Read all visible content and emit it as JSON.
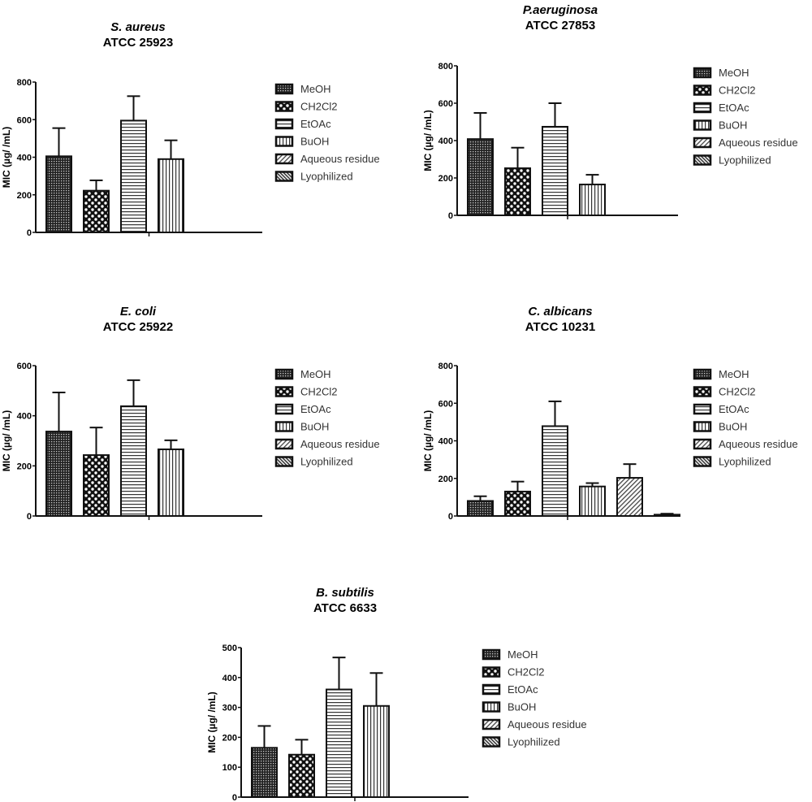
{
  "legend": [
    "MeOH",
    "CH2Cl2",
    "EtOAc",
    "BuOH",
    "Aqueous residue",
    "Lyophilized"
  ],
  "pattern_names": [
    "dense-dots",
    "checker",
    "horizontal-lines",
    "vertical-lines",
    "diagonal-lines",
    "dense-diagonal"
  ],
  "chart_data": [
    {
      "type": "bar",
      "title": "S. aureus",
      "subtitle": "ATCC 25923",
      "ylabel": "MIC (µg/ /mL)",
      "ylim": [
        0,
        800
      ],
      "yticks": [
        0,
        200,
        400,
        600,
        800
      ],
      "categories": [
        "MeOH",
        "CH2Cl2",
        "EtOAc",
        "BuOH",
        "Aqueous residue",
        "Lyophilized"
      ],
      "values": [
        405,
        222,
        595,
        390,
        null,
        null
      ],
      "errors": [
        150,
        55,
        130,
        100,
        null,
        null
      ],
      "legend": "right"
    },
    {
      "type": "bar",
      "title": "P.aeruginosa",
      "subtitle": "ATCC 27853",
      "ylabel": "MIC (µg/ /mL)",
      "ylim": [
        0,
        800
      ],
      "yticks": [
        0,
        200,
        400,
        600,
        800
      ],
      "categories": [
        "MeOH",
        "CH2Cl2",
        "EtOAc",
        "BuOH",
        "Aqueous residue",
        "Lyophilized"
      ],
      "values": [
        408,
        252,
        474,
        165,
        null,
        null
      ],
      "errors": [
        140,
        110,
        126,
        52,
        null,
        null
      ],
      "legend": "right"
    },
    {
      "type": "bar",
      "title": "E. coli",
      "subtitle": "ATCC 25922",
      "ylabel": "MIC (µg/ /mL)",
      "ylim": [
        0,
        600
      ],
      "yticks": [
        0,
        200,
        400,
        600
      ],
      "categories": [
        "MeOH",
        "CH2Cl2",
        "EtOAc",
        "BuOH",
        "Aqueous residue",
        "Lyophilized"
      ],
      "values": [
        337,
        243,
        438,
        266,
        null,
        null
      ],
      "errors": [
        156,
        110,
        104,
        36,
        null,
        null
      ],
      "legend": "right"
    },
    {
      "type": "bar",
      "title": "C. albicans",
      "subtitle": "ATCC 10231",
      "ylabel": "MIC (µg/ /mL)",
      "ylim": [
        0,
        800
      ],
      "yticks": [
        0,
        200,
        400,
        600,
        800
      ],
      "categories": [
        "MeOH",
        "CH2Cl2",
        "EtOAc",
        "BuOH",
        "Aqueous residue",
        "Lyophilized"
      ],
      "values": [
        80,
        130,
        478,
        157,
        203,
        7
      ],
      "errors": [
        25,
        53,
        132,
        18,
        73,
        5
      ],
      "legend": "right"
    },
    {
      "type": "bar",
      "title": "B. subtilis",
      "subtitle": "ATCC 6633",
      "ylabel": "MIC (µg/ /mL)",
      "ylim": [
        0,
        500
      ],
      "yticks": [
        0,
        100,
        200,
        300,
        400,
        500
      ],
      "categories": [
        "MeOH",
        "CH2Cl2",
        "EtOAc",
        "BuOH",
        "Aqueous residue",
        "Lyophilized"
      ],
      "values": [
        165,
        142,
        360,
        305,
        null,
        null
      ],
      "errors": [
        73,
        50,
        107,
        110,
        null,
        null
      ],
      "legend": "right"
    }
  ]
}
